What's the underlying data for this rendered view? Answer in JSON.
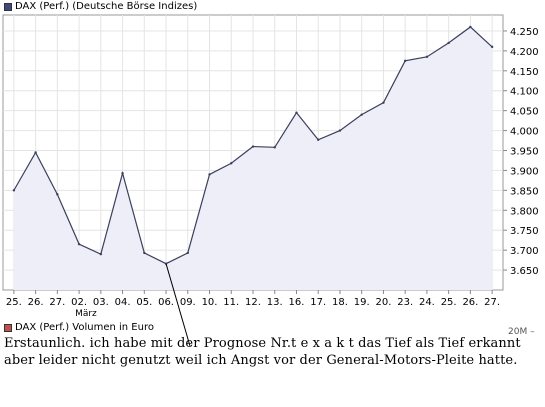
{
  "chart_data": {
    "type": "area",
    "title": "",
    "legend": [
      {
        "label": "DAX (Perf.) (Deutsche Börse Indizes)",
        "color": "#3f4a7a"
      },
      {
        "label": "DAX (Perf.) Volumen in Euro",
        "color": "#c0504d"
      }
    ],
    "x_tick_labels": [
      "25.",
      "26.",
      "27.",
      "02.",
      "03.",
      "04.",
      "05.",
      "06.",
      "09.",
      "10.",
      "11.",
      "12.",
      "13.",
      "16.",
      "17.",
      "18.",
      "19.",
      "20.",
      "23.",
      "24.",
      "25.",
      "26.",
      "27."
    ],
    "month_label": "März",
    "y_ticks": [
      "4.250",
      "4.200",
      "4.150",
      "4.100",
      "4.050",
      "4.000",
      "3.950",
      "3.900",
      "3.850",
      "3.800",
      "3.750",
      "3.700",
      "3.650"
    ],
    "ylim": [
      3600,
      4290
    ],
    "grid": true,
    "series": [
      {
        "values": [
          3850,
          3945,
          3840,
          3715,
          3690,
          3893,
          3693,
          3666,
          3693,
          3890,
          3918,
          3960,
          3958,
          4045,
          3977,
          4000,
          4040,
          4070,
          4175,
          4185,
          4220,
          4260,
          4210
        ],
        "color": "#3a3f5c",
        "fill": "#eeeef8"
      }
    ],
    "cut_label": "20M –"
  },
  "annotation_lines": [
    "Erstaunlich. ich habe mit der Prognose Nr.t  e x a k t das Tief als Tief erkannt",
    "aber leider nicht genutzt weil ich Angst vor der General-Motors-Pleite hatte."
  ]
}
